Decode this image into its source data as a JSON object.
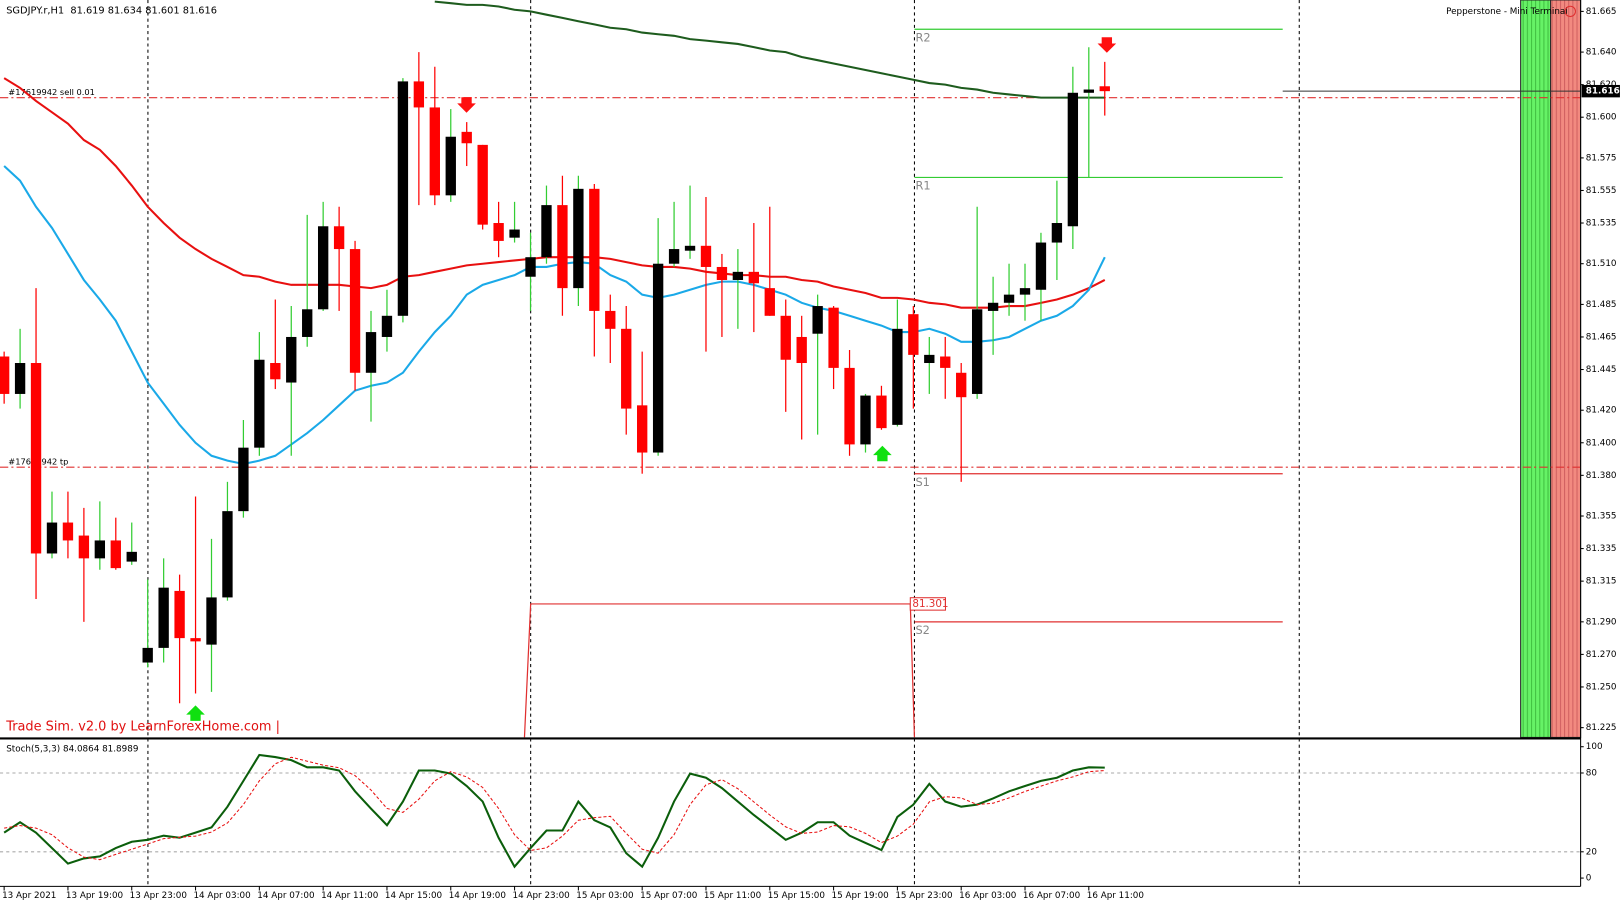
{
  "header": {
    "symbol": "SGDJPY.r,H1",
    "ohlc": "81.619 81.634 81.601 81.616",
    "terminal": "Pepperstone - Mini Terminal",
    "watermark": "Trade Sim. v2.0 by LearnForexHome.com |"
  },
  "chart_data": [
    {
      "type": "candlestick",
      "categories": [
        "13 Apr 2021",
        null,
        null,
        null,
        "13 Apr 19:00",
        null,
        null,
        null,
        "13 Apr 23:00",
        null,
        null,
        null,
        "14 Apr 03:00",
        null,
        null,
        null,
        "14 Apr 07:00",
        null,
        null,
        null,
        "14 Apr 11:00",
        null,
        null,
        null,
        "14 Apr 15:00",
        null,
        null,
        null,
        "14 Apr 19:00",
        null,
        null,
        null,
        "14 Apr 23:00",
        null,
        null,
        null,
        "15 Apr 03:00",
        null,
        null,
        null,
        "15 Apr 07:00",
        null,
        null,
        null,
        "15 Apr 11:00",
        null,
        null,
        null,
        "15 Apr 15:00",
        null,
        null,
        null,
        "15 Apr 19:00",
        null,
        null,
        null,
        "15 Apr 23:00",
        null,
        null,
        null,
        "16 Apr 03:00",
        null,
        null,
        null,
        "16 Apr 07:00",
        null,
        null,
        null,
        "16 Apr 11:00",
        null
      ],
      "open": [
        81.453,
        81.43,
        81.449,
        81.332,
        81.351,
        81.343,
        81.329,
        81.34,
        81.327,
        81.265,
        81.274,
        81.309,
        81.28,
        81.276,
        81.305,
        81.358,
        81.397,
        81.449,
        81.437,
        81.465,
        81.482,
        81.533,
        81.519,
        81.443,
        81.465,
        81.478,
        81.622,
        81.606,
        81.552,
        81.591,
        81.583,
        81.535,
        81.526,
        81.502,
        81.514,
        81.546,
        81.495,
        81.556,
        81.481,
        81.47,
        81.423,
        81.394,
        81.51,
        81.518,
        81.521,
        81.508,
        81.5,
        81.505,
        81.495,
        81.478,
        81.465,
        81.467,
        81.483,
        81.446,
        81.399,
        81.429,
        81.411,
        81.479,
        81.449,
        81.453,
        81.443,
        81.43,
        81.481,
        81.486,
        81.491,
        81.494,
        81.523,
        81.533,
        81.615,
        81.619
      ],
      "high": [
        81.456,
        81.47,
        81.495,
        81.37,
        81.37,
        81.36,
        81.364,
        81.354,
        81.351,
        81.316,
        81.329,
        81.319,
        81.367,
        81.341,
        81.376,
        81.414,
        81.468,
        81.488,
        81.484,
        81.54,
        81.548,
        81.545,
        81.524,
        81.481,
        81.494,
        81.624,
        81.64,
        81.631,
        81.605,
        81.597,
        81.583,
        81.548,
        81.548,
        81.529,
        81.558,
        81.564,
        81.564,
        81.559,
        81.491,
        81.484,
        81.456,
        81.538,
        81.548,
        81.558,
        81.551,
        81.516,
        81.519,
        81.535,
        81.545,
        81.488,
        81.478,
        81.491,
        81.484,
        81.457,
        81.43,
        81.435,
        81.488,
        81.484,
        81.465,
        81.465,
        81.449,
        81.545,
        81.502,
        81.51,
        81.51,
        81.529,
        81.561,
        81.631,
        81.643,
        81.634
      ],
      "low": [
        81.424,
        81.421,
        81.304,
        81.329,
        81.329,
        81.29,
        81.322,
        81.322,
        81.325,
        81.262,
        81.265,
        81.24,
        81.246,
        81.247,
        81.303,
        81.354,
        81.392,
        81.433,
        81.392,
        81.459,
        81.481,
        81.481,
        81.432,
        81.413,
        81.456,
        81.474,
        81.546,
        81.546,
        81.548,
        81.57,
        81.531,
        81.514,
        81.523,
        81.481,
        81.51,
        81.478,
        81.484,
        81.453,
        81.449,
        81.405,
        81.381,
        81.392,
        81.508,
        81.513,
        81.456,
        81.465,
        81.47,
        81.468,
        81.478,
        81.419,
        81.402,
        81.405,
        81.433,
        81.392,
        81.394,
        81.408,
        81.41,
        81.421,
        81.43,
        81.427,
        81.376,
        81.427,
        81.454,
        81.478,
        81.475,
        81.475,
        81.5,
        81.519,
        81.563,
        81.601
      ],
      "close": [
        81.43,
        81.449,
        81.332,
        81.351,
        81.34,
        81.329,
        81.34,
        81.323,
        81.333,
        81.274,
        81.311,
        81.28,
        81.278,
        81.305,
        81.358,
        81.397,
        81.451,
        81.439,
        81.465,
        81.482,
        81.533,
        81.519,
        81.443,
        81.468,
        81.478,
        81.622,
        81.606,
        81.552,
        81.588,
        81.584,
        81.534,
        81.524,
        81.531,
        81.514,
        81.546,
        81.495,
        81.556,
        81.481,
        81.47,
        81.421,
        81.394,
        81.51,
        81.519,
        81.521,
        81.508,
        81.5,
        81.505,
        81.498,
        81.478,
        81.451,
        81.449,
        81.484,
        81.446,
        81.399,
        81.429,
        81.409,
        81.47,
        81.454,
        81.454,
        81.446,
        81.428,
        81.482,
        81.486,
        81.491,
        81.495,
        81.523,
        81.535,
        81.615,
        81.617,
        81.616
      ],
      "bull_color": "#000000",
      "bull_wick": "#32cd32",
      "bear_color": "#ff0000",
      "overlays": [
        {
          "color": "#e81010",
          "values": [
            81.624,
            81.618,
            81.61,
            81.603,
            81.596,
            81.586,
            81.58,
            81.57,
            81.558,
            81.545,
            81.535,
            81.526,
            81.519,
            81.513,
            81.508,
            81.503,
            81.502,
            81.499,
            81.497,
            81.497,
            81.497,
            81.497,
            81.496,
            81.495,
            81.497,
            81.502,
            81.503,
            81.505,
            81.507,
            81.509,
            81.51,
            81.511,
            81.512,
            81.513,
            81.514,
            81.514,
            81.514,
            81.514,
            81.513,
            81.511,
            81.509,
            81.508,
            81.508,
            81.507,
            81.505,
            81.504,
            81.503,
            81.503,
            81.502,
            81.502,
            81.5,
            81.499,
            81.496,
            81.494,
            81.492,
            81.489,
            81.489,
            81.488,
            81.486,
            81.485,
            81.483,
            81.483,
            81.483,
            81.484,
            81.484,
            81.486,
            81.488,
            81.491,
            81.495,
            81.5
          ]
        },
        {
          "color": "#1aa9e8",
          "values": [
            81.57,
            81.561,
            81.545,
            81.532,
            81.516,
            81.5,
            81.488,
            81.475,
            81.456,
            81.437,
            81.424,
            81.411,
            81.4,
            81.392,
            81.389,
            81.387,
            81.389,
            81.392,
            81.399,
            81.406,
            81.414,
            81.423,
            81.432,
            81.435,
            81.437,
            81.443,
            81.456,
            81.468,
            81.478,
            81.491,
            81.497,
            81.5,
            81.503,
            81.508,
            81.508,
            81.51,
            81.511,
            81.51,
            81.503,
            81.499,
            81.491,
            81.489,
            81.491,
            81.494,
            81.497,
            81.499,
            81.499,
            81.497,
            81.494,
            81.491,
            81.486,
            81.483,
            81.481,
            81.478,
            81.475,
            81.472,
            81.468,
            81.468,
            81.47,
            81.467,
            81.462,
            81.462,
            81.463,
            81.465,
            81.47,
            81.475,
            81.478,
            81.484,
            81.494,
            81.514
          ]
        },
        {
          "color": "#1e5c1e",
          "values": [
            null,
            null,
            null,
            null,
            null,
            null,
            null,
            null,
            null,
            null,
            null,
            null,
            null,
            null,
            null,
            null,
            null,
            null,
            null,
            null,
            null,
            null,
            null,
            null,
            null,
            null,
            null,
            81.671,
            81.67,
            81.669,
            81.669,
            81.668,
            81.666,
            81.665,
            81.663,
            81.661,
            81.659,
            81.657,
            81.655,
            81.654,
            81.652,
            81.651,
            81.65,
            81.648,
            81.647,
            81.646,
            81.645,
            81.643,
            81.641,
            81.64,
            81.637,
            81.635,
            81.633,
            81.631,
            81.629,
            81.627,
            81.625,
            81.623,
            81.621,
            81.62,
            81.618,
            81.617,
            81.615,
            81.614,
            81.613,
            81.612,
            81.612,
            81.612,
            81.612,
            81.612
          ]
        }
      ],
      "levels": [
        {
          "label": "R2",
          "value": 81.654,
          "color": "#33cc33"
        },
        {
          "label": "R1",
          "value": 81.563,
          "color": "#33cc33"
        },
        {
          "label": "S1",
          "value": 81.381,
          "color": "#e03030"
        },
        {
          "label": "S2",
          "value": 81.29,
          "color": "#e03030"
        }
      ],
      "pivot": {
        "value": 81.301,
        "color": "#e03030"
      },
      "orders": [
        {
          "label": "#17619942 sell 0.01",
          "value": 81.612
        },
        {
          "label": "#17619942 tp",
          "value": 81.385
        }
      ],
      "ylim": [
        81.219,
        81.672
      ],
      "yticks": [
        81.665,
        {
          "value": 81.64,
          "label": "81.640"
        },
        {
          "value": 81.62,
          "label": "81.620"
        },
        {
          "value": 81.6,
          "label": "81.600"
        },
        81.575,
        81.555,
        81.535,
        {
          "value": 81.51,
          "label": "81.510"
        },
        81.485,
        81.465,
        81.445,
        {
          "value": 81.42,
          "label": "81.420"
        },
        {
          "value": 81.4,
          "label": "81.400"
        },
        {
          "value": 81.38,
          "label": "81.380"
        },
        81.355,
        81.335,
        81.315,
        {
          "value": 81.29,
          "label": "81.290"
        },
        {
          "value": 81.27,
          "label": "81.270"
        },
        {
          "value": 81.25,
          "label": "81.250"
        },
        81.225
      ]
    },
    {
      "type": "line",
      "title": "Stoch(5,3,3) 84.0864 81.8989",
      "series": [
        {
          "color": "#0b5e0b",
          "values": [
            34.6,
            42.5,
            34.6,
            22.8,
            11.0,
            15.0,
            16.5,
            22.8,
            27.6,
            29.1,
            32.3,
            30.7,
            34.6,
            38.6,
            54.3,
            74.0,
            93.7,
            92.1,
            89.8,
            84.3,
            84.3,
            81.9,
            66.1,
            52.8,
            40.2,
            58.3,
            81.9,
            81.9,
            79.5,
            70.1,
            58.3,
            30.7,
            8.7,
            22.8,
            36.2,
            36.2,
            58.3,
            44.1,
            38.6,
            18.9,
            8.7,
            30.7,
            58.3,
            79.5,
            76.4,
            68.5,
            58.3,
            48.0,
            38.6,
            29.1,
            34.6,
            42.5,
            42.5,
            32.3,
            26.8,
            21.3,
            46.5,
            55.9,
            71.7,
            58.3,
            54.3,
            55.9,
            60.6,
            66.1,
            70.1,
            74.0,
            76.4,
            81.9,
            84.3,
            84.1
          ]
        },
        {
          "color": "#e81010",
          "dash": true,
          "values": [
            38,
            40,
            38,
            33,
            23,
            16,
            14,
            18,
            22,
            26,
            30,
            31,
            32,
            35,
            42,
            56,
            74,
            87,
            92,
            89,
            86,
            84,
            78,
            67,
            53,
            50,
            60,
            74,
            81,
            77,
            69,
            53,
            33,
            21,
            23,
            32,
            44,
            46,
            47,
            34,
            22,
            19,
            33,
            56,
            71,
            75,
            68,
            58,
            48,
            39,
            34,
            35,
            40,
            39,
            34,
            27,
            32,
            41,
            58,
            62,
            61,
            56,
            57,
            61,
            66,
            70,
            74,
            77,
            81,
            81.9
          ]
        }
      ],
      "levels": [
        20,
        80
      ],
      "ylim": [
        0,
        100
      ],
      "yticks": [
        0,
        20,
        80,
        100
      ]
    }
  ]
}
